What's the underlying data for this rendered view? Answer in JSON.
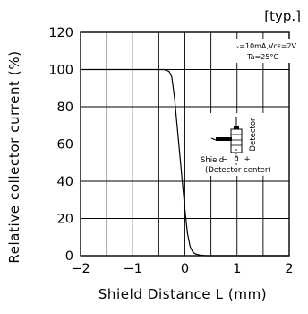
{
  "chart_data": {
    "type": "line",
    "note": "[typ.]",
    "xlabel": "Shield Distance L (mm)",
    "ylabel": "Relative collector current (%)",
    "xlim": [
      -2,
      2
    ],
    "ylim": [
      0,
      120
    ],
    "x_ticks": [
      -2,
      -1.5,
      -1,
      -0.5,
      0,
      0.5,
      1,
      1.5,
      2
    ],
    "x_tick_labels": [
      "−2",
      "−1",
      "0",
      "1",
      "2"
    ],
    "x_tick_label_values": [
      -2,
      -1,
      0,
      1,
      2
    ],
    "y_ticks": [
      0,
      20,
      40,
      60,
      80,
      100,
      120
    ],
    "y_tick_labels": [
      "0",
      "20",
      "40",
      "60",
      "80",
      "100",
      "120"
    ],
    "grid": true,
    "conditions": [
      "Iₓ=10mA,Vᴄᴇ=2V",
      "Ta=25°C"
    ],
    "inset": {
      "label_shield": "Shield",
      "label_detector": "Detector",
      "label_center": "(Detector center)",
      "sign_minus": "−",
      "sign_zero": "0",
      "sign_plus": "+"
    },
    "series": [
      {
        "x": [
          -2.0,
          -0.4,
          -0.3,
          -0.25,
          -0.2,
          -0.15,
          -0.1,
          -0.05,
          0.0,
          0.05,
          0.1,
          0.15,
          0.2,
          0.3,
          0.4,
          0.5,
          1.0,
          2.0
        ],
        "y": [
          100,
          100,
          99,
          96,
          85,
          70,
          55,
          40,
          25,
          12,
          5,
          2,
          1,
          0.3,
          0,
          0,
          0,
          0
        ]
      }
    ]
  }
}
